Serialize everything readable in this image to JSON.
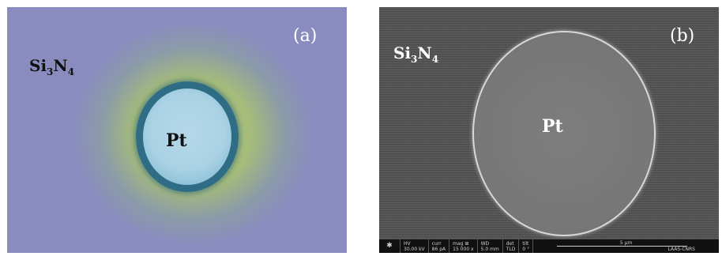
{
  "panel_a": {
    "tag": "(a)",
    "substrate_label": "Si",
    "substrate_sub1": "3",
    "substrate_mid": "N",
    "substrate_sub2": "4",
    "center_label": "Pt"
  },
  "panel_b": {
    "tag": "(b)",
    "substrate_label": "Si",
    "substrate_sub1": "3",
    "substrate_mid": "N",
    "substrate_sub2": "4",
    "center_label": "Pt",
    "info_bar": {
      "hv_label": "HV",
      "hv_value": "30.00 kV",
      "curr_label": "curr",
      "curr_value": "86 pA",
      "mag_label": "mag ⊞",
      "mag_value": "15 000 x",
      "wd_label": "WD",
      "wd_value": "5.0 mm",
      "det_label": "det",
      "det_value": "TLD",
      "tilt_label": "tilt",
      "tilt_value": "0 °",
      "scale": "5 µm",
      "lab": "LAAS-CNRS"
    }
  }
}
